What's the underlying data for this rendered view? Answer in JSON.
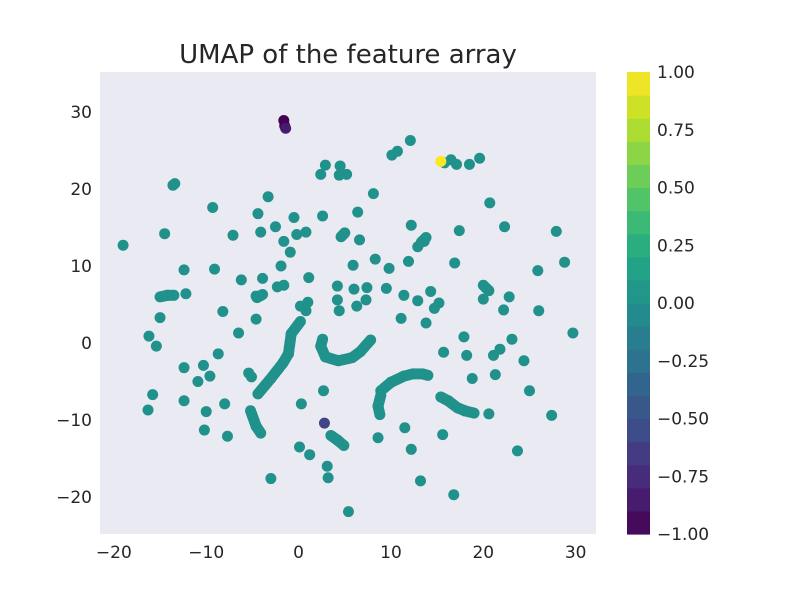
{
  "chart_data": {
    "type": "scatter",
    "title": "UMAP of the feature array",
    "xlabel": "",
    "ylabel": "",
    "xlim": [
      -21.5,
      32.2
    ],
    "ylim": [
      -24.8,
      35.2
    ],
    "grid": false,
    "plot_background": "#EAEAF2",
    "base_point_color": "#21918C",
    "colormap": "viridis",
    "colorbar": {
      "min": -1.0,
      "max": 1.0,
      "bands": 20,
      "ticks": [
        {
          "value": 1.0,
          "label": "1.00"
        },
        {
          "value": 0.75,
          "label": "0.75"
        },
        {
          "value": 0.5,
          "label": "0.50"
        },
        {
          "value": 0.25,
          "label": "0.25"
        },
        {
          "value": 0.0,
          "label": "0.00"
        },
        {
          "value": -0.25,
          "label": "−0.25"
        },
        {
          "value": -0.5,
          "label": "−0.50"
        },
        {
          "value": -0.75,
          "label": "−0.75"
        },
        {
          "value": -1.0,
          "label": "−1.00"
        }
      ]
    },
    "xticks": [
      {
        "value": -20,
        "label": "−20"
      },
      {
        "value": -10,
        "label": "−10"
      },
      {
        "value": 0,
        "label": "0"
      },
      {
        "value": 10,
        "label": "10"
      },
      {
        "value": 20,
        "label": "20"
      },
      {
        "value": 30,
        "label": "30"
      }
    ],
    "yticks": [
      {
        "value": 30,
        "label": "30"
      },
      {
        "value": 20,
        "label": "20"
      },
      {
        "value": 10,
        "label": "10"
      },
      {
        "value": 0,
        "label": "0"
      },
      {
        "value": -10,
        "label": "−10"
      },
      {
        "value": -20,
        "label": "−20"
      }
    ],
    "points": [
      [
        -19.0,
        12.7
      ],
      [
        -16.3,
        -8.7
      ],
      [
        -15.8,
        -6.7
      ],
      [
        -16.2,
        0.9
      ],
      [
        -15.4,
        -0.4
      ],
      [
        -15.0,
        3.3
      ],
      [
        -14.5,
        14.2
      ],
      [
        -13.6,
        20.5
      ],
      [
        -13.4,
        20.7
      ],
      [
        -12.4,
        9.5
      ],
      [
        -12.4,
        -3.2
      ],
      [
        -12.4,
        -7.5
      ],
      [
        -12.2,
        6.4
      ],
      [
        -10.9,
        -5.0
      ],
      [
        -10.3,
        -2.9
      ],
      [
        -10.2,
        -11.3
      ],
      [
        -10.0,
        -8.9
      ],
      [
        -9.6,
        -4.3
      ],
      [
        -9.3,
        17.6
      ],
      [
        -9.1,
        9.6
      ],
      [
        -8.7,
        -1.4
      ],
      [
        -8.2,
        4.1
      ],
      [
        -8.0,
        -7.9
      ],
      [
        -7.7,
        -12.1
      ],
      [
        -7.1,
        14.0
      ],
      [
        -6.5,
        1.3
      ],
      [
        -6.2,
        8.2
      ],
      [
        -5.4,
        -3.9
      ],
      [
        -5.1,
        -4.4
      ],
      [
        -4.6,
        6.1
      ],
      [
        -4.6,
        3.1
      ],
      [
        -4.4,
        16.8
      ],
      [
        -4.1,
        14.4
      ],
      [
        -3.9,
        8.4
      ],
      [
        -3.3,
        19.0
      ],
      [
        -3.0,
        -17.6
      ],
      [
        -2.5,
        15.1
      ],
      [
        -2.3,
        7.3
      ],
      [
        -1.9,
        10.0
      ],
      [
        -1.6,
        13.2
      ],
      [
        -1.6,
        7.5
      ],
      [
        -0.9,
        11.8
      ],
      [
        -0.5,
        16.3
      ],
      [
        -0.2,
        14.1
      ],
      [
        0.2,
        4.8
      ],
      [
        0.1,
        -13.5
      ],
      [
        0.3,
        -7.9
      ],
      [
        0.8,
        4.2
      ],
      [
        1.0,
        5.3
      ],
      [
        1.1,
        8.5
      ],
      [
        0.8,
        14.4
      ],
      [
        1.2,
        -14.5
      ],
      [
        2.6,
        16.5
      ],
      [
        2.4,
        21.9
      ],
      [
        2.9,
        23.1
      ],
      [
        2.7,
        -6.2
      ],
      [
        3.1,
        -16.0
      ],
      [
        3.2,
        -17.5
      ],
      [
        4.2,
        5.6
      ],
      [
        4.2,
        7.4
      ],
      [
        4.4,
        4.2
      ],
      [
        4.5,
        23.0
      ],
      [
        4.4,
        21.8
      ],
      [
        5.2,
        21.9
      ],
      [
        5.4,
        -21.9
      ],
      [
        5.9,
        10.1
      ],
      [
        6.0,
        7.0
      ],
      [
        6.3,
        4.8
      ],
      [
        6.4,
        17.0
      ],
      [
        6.6,
        13.4
      ],
      [
        7.3,
        5.6
      ],
      [
        7.4,
        7.2
      ],
      [
        8.1,
        19.4
      ],
      [
        8.3,
        10.9
      ],
      [
        8.6,
        -12.3
      ],
      [
        9.5,
        7.1
      ],
      [
        9.8,
        9.7
      ],
      [
        10.1,
        24.4
      ],
      [
        10.7,
        24.9
      ],
      [
        11.1,
        3.2
      ],
      [
        11.4,
        6.2
      ],
      [
        11.5,
        -11.0
      ],
      [
        11.9,
        10.6
      ],
      [
        12.1,
        26.3
      ],
      [
        12.2,
        15.3
      ],
      [
        12.2,
        -13.8
      ],
      [
        12.9,
        5.5
      ],
      [
        12.9,
        12.5
      ],
      [
        13.2,
        -17.9
      ],
      [
        13.6,
        13.2
      ],
      [
        13.8,
        2.6
      ],
      [
        14.3,
        6.7
      ],
      [
        14.7,
        4.5
      ],
      [
        15.2,
        5.2
      ],
      [
        15.6,
        -11.9
      ],
      [
        15.7,
        -1.2
      ],
      [
        15.8,
        23.4
      ],
      [
        16.5,
        23.8
      ],
      [
        16.8,
        -19.7
      ],
      [
        16.9,
        10.4
      ],
      [
        17.1,
        23.2
      ],
      [
        17.4,
        14.6
      ],
      [
        17.9,
        0.8
      ],
      [
        18.2,
        -1.6
      ],
      [
        18.5,
        23.2
      ],
      [
        18.8,
        -4.6
      ],
      [
        19.6,
        24.0
      ],
      [
        20.0,
        5.7
      ],
      [
        20.6,
        -9.2
      ],
      [
        20.7,
        18.2
      ],
      [
        21.1,
        -1.6
      ],
      [
        21.3,
        -4.1
      ],
      [
        21.8,
        -0.8
      ],
      [
        22.2,
        4.3
      ],
      [
        22.3,
        15.1
      ],
      [
        22.8,
        6.0
      ],
      [
        23.1,
        0.5
      ],
      [
        23.7,
        -14.0
      ],
      [
        24.4,
        -2.3
      ],
      [
        25.0,
        -6.2
      ],
      [
        25.9,
        9.4
      ],
      [
        26.0,
        4.2
      ],
      [
        27.4,
        -9.4
      ],
      [
        27.9,
        14.5
      ],
      [
        28.8,
        10.5
      ],
      [
        29.7,
        1.3
      ]
    ],
    "curves": [
      [
        [
          0.2,
          2.8
        ],
        [
          -0.8,
          1.2
        ],
        [
          -1.1,
          -1.4
        ],
        [
          -1.7,
          -2.6
        ],
        [
          -3.0,
          -4.6
        ],
        [
          -4.4,
          -6.6
        ]
      ],
      [
        [
          -5.2,
          -8.8
        ],
        [
          -4.6,
          -10.8
        ],
        [
          -4.1,
          -11.7
        ]
      ],
      [
        [
          2.6,
          0.5
        ],
        [
          2.4,
          -0.4
        ],
        [
          2.9,
          -1.8
        ],
        [
          4.3,
          -2.3
        ],
        [
          5.8,
          -1.9
        ],
        [
          6.7,
          -1.1
        ],
        [
          7.8,
          0.4
        ]
      ],
      [
        [
          8.9,
          -6.2
        ],
        [
          10.0,
          -5.1
        ],
        [
          11.4,
          -4.3
        ],
        [
          12.4,
          -4.0
        ],
        [
          13.4,
          -4.0
        ],
        [
          14.0,
          -4.2
        ]
      ],
      [
        [
          8.9,
          -6.8
        ],
        [
          8.6,
          -8.2
        ],
        [
          8.8,
          -9.3
        ]
      ],
      [
        [
          15.4,
          -7.0
        ],
        [
          16.2,
          -7.5
        ],
        [
          17.2,
          -8.4
        ],
        [
          18.0,
          -8.8
        ],
        [
          19.0,
          -9.1
        ]
      ],
      [
        [
          4.6,
          13.8
        ],
        [
          5.0,
          14.3
        ]
      ],
      [
        [
          13.3,
          13.1
        ],
        [
          13.8,
          13.7
        ]
      ],
      [
        [
          3.5,
          -12.0
        ],
        [
          4.2,
          -12.6
        ],
        [
          4.9,
          -13.3
        ]
      ],
      [
        [
          -15.0,
          6.0
        ],
        [
          -14.2,
          6.2
        ],
        [
          -13.5,
          6.2
        ]
      ],
      [
        [
          -4.5,
          5.9
        ],
        [
          -3.9,
          6.3
        ]
      ],
      [
        [
          20.0,
          7.5
        ],
        [
          20.6,
          6.8
        ]
      ]
    ],
    "colored_points": [
      {
        "x": -1.6,
        "y": 28.9,
        "value": -1.0
      },
      {
        "x": -1.5,
        "y": 28.2,
        "value": -1.0
      },
      {
        "x": -1.4,
        "y": 27.9,
        "value": -0.85
      },
      {
        "x": 2.8,
        "y": -10.4,
        "value": -0.6
      },
      {
        "x": 15.4,
        "y": 23.6,
        "value": 1.0
      }
    ]
  }
}
